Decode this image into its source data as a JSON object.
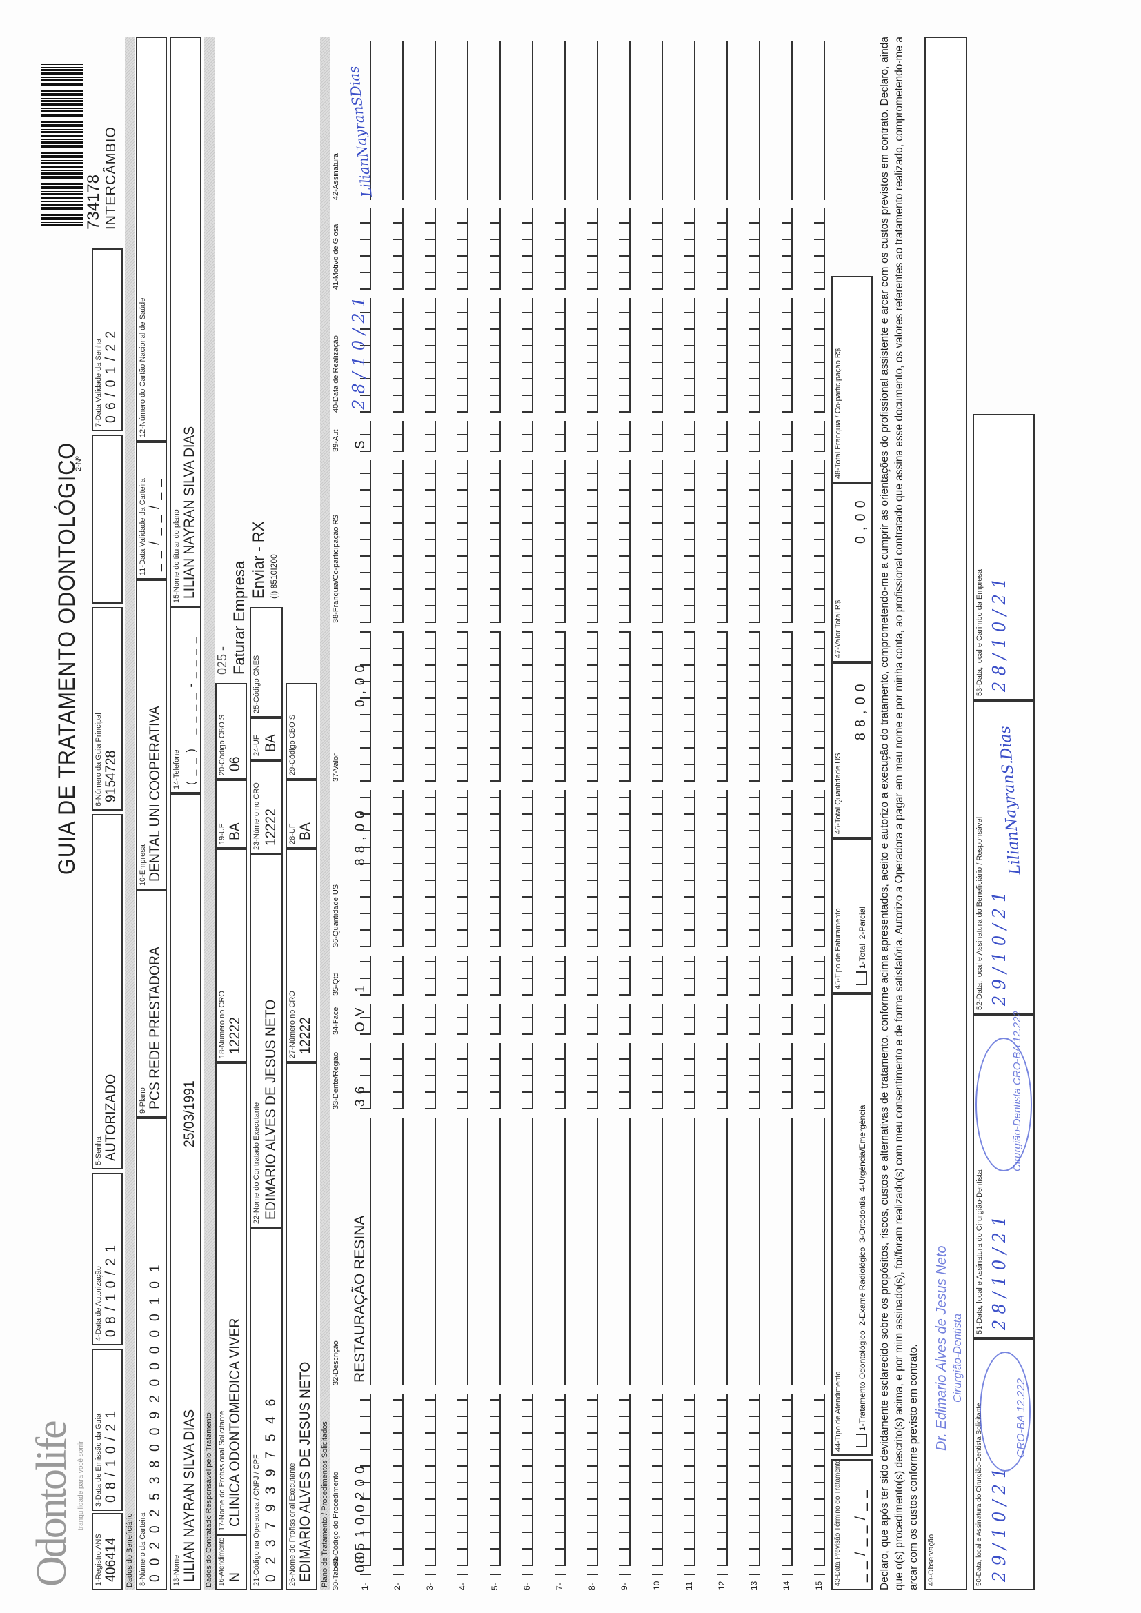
{
  "header": {
    "logo": "Odontolife",
    "tagline": "tranquilidade para você sorrir",
    "title": "GUIA DE TRATAMENTO ODONTOLÓGICO",
    "numero_label": "2-Nº",
    "numero": "734178",
    "tipo": "INTERCÂMBIO"
  },
  "fields": {
    "f1": {
      "label": "1-Registro ANS",
      "value": "406414"
    },
    "f3": {
      "label": "3-Data de Emissão da Guia",
      "value": "08/10/21"
    },
    "f4": {
      "label": "4-Data de Autorização",
      "value": "08/10/21"
    },
    "f5": {
      "label": "5-Senha",
      "value": "AUTORIZADO"
    },
    "f6": {
      "label": "6-Número da Guia Principal",
      "value": "9154728"
    },
    "f7": {
      "label": "7-Data Validade da Senha",
      "value": "06/01/22"
    },
    "f8": {
      "label": "8-Número da Carteira",
      "value": "00202538009200000101"
    },
    "f9": {
      "label": "9-Plano",
      "value": "PCS REDE PRESTADORA"
    },
    "f10": {
      "label": "10-Empresa",
      "value": "DENTAL UNI COOPERATIVA"
    },
    "f11": {
      "label": "11-Data Validade da Carteira",
      "value": "__/__/__"
    },
    "f12": {
      "label": "12-Número do Cartão Nacional de Saúde",
      "value": ""
    },
    "f13": {
      "label": "13-Nome",
      "value": "LILIAN NAYRAN SILVA DIAS",
      "birth": "25/03/1991"
    },
    "f14": {
      "label": "14-Telefone",
      "value": "(__) ____-____"
    },
    "f15": {
      "label": "15-Nome do titular do plano",
      "value": "LILIAN NAYRAN SILVA DIAS"
    },
    "f16": {
      "label": "16-Atendimento a RN",
      "value": "N"
    },
    "f17": {
      "label": "17-Nome do Profissional Solicitante",
      "value": "CLINICA ODONTOMEDICA VIVER"
    },
    "f18": {
      "label": "18-Número no CRO",
      "value": "12222"
    },
    "f19": {
      "label": "19-UF",
      "value": "BA"
    },
    "f20": {
      "label": "20-Código CBO S",
      "value": "06"
    },
    "f21": {
      "label": "21-Código na Operadora / CNPJ / CPF",
      "value": "02379397546"
    },
    "f22": {
      "label": "22-Nome do Contratado Executante",
      "value": "EDIMARIO ALVES DE JESUS NETO"
    },
    "f23": {
      "label": "23-Número no CRO",
      "value": "12222"
    },
    "f24": {
      "label": "24-UF",
      "value": "BA"
    },
    "f25": {
      "label": "25-Código CNES",
      "value": ""
    },
    "f26": {
      "label": "26-Nome do Profissional Executante",
      "value": "EDIMARIO ALVES DE JESUS NETO"
    },
    "f27": {
      "label": "27-Número no CRO",
      "value": "12222"
    },
    "f28": {
      "label": "28-UF",
      "value": "BA"
    },
    "f29": {
      "label": "29-Código CBO S",
      "value": ""
    }
  },
  "notes": {
    "faturamento_code": "025 -",
    "faturamento": "Faturar Empresa",
    "envio": "Enviar - RX",
    "envio_code": "(I) 8510I200"
  },
  "sections": {
    "beneficiario": "Dados do Beneficiário",
    "contratado": "Dados do Contratado Responsável pelo Tratamento",
    "plano": "Plano de Tratamento / Procedimentos Solicitados"
  },
  "table": {
    "columns": [
      "30-Tabela",
      "31-Código do Procedimento",
      "32-Descrição",
      "33-Dente/Região",
      "34-Face",
      "35-Qtd",
      "36-Quantidade US",
      "37-Valor",
      "38-Franquia/Co-participação R$",
      "39-Aut",
      "40-Data de Realização",
      "41-Motivo de Glosa",
      "42-Assinatura"
    ],
    "rows": [
      {
        "num": "1-",
        "tabela": "00",
        "codigo": "85100200",
        "descricao": "RESTAURAÇÃO RESINA",
        "dente": "36",
        "face": "OV",
        "qtd": "1",
        "qtd_us": "88,00",
        "valor": "0,00",
        "franquia": "",
        "aut": "S",
        "data": "28/10/21",
        "motivo": "",
        "assinatura": "LilianNayranSDias"
      },
      {
        "num": "2-"
      },
      {
        "num": "3-"
      },
      {
        "num": "4-"
      },
      {
        "num": "5-"
      },
      {
        "num": "6-"
      },
      {
        "num": "7-"
      },
      {
        "num": "8-"
      },
      {
        "num": "9-"
      },
      {
        "num": "10"
      },
      {
        "num": "11"
      },
      {
        "num": "12"
      },
      {
        "num": "13"
      },
      {
        "num": "14"
      },
      {
        "num": "15"
      }
    ]
  },
  "totals": {
    "f43": {
      "label": "43-Data Previsão Término do Tratamento",
      "value": "__/__/__"
    },
    "f44": {
      "label": "44-Tipo de Atendimento",
      "options": "1-Tratamento Odontológico  2-Exame Radiológico  3-Ortodontia  4-Urgência/Emergência"
    },
    "f45": {
      "label": "45-Tipo de Faturamento",
      "options": "1-Total  2-Parcial"
    },
    "f46": {
      "label": "46-Total Quantidade US",
      "value": "88,00"
    },
    "f47": {
      "label": "47-Valor Total R$",
      "value": "0,00"
    },
    "f48": {
      "label": "48-Total Franquia / Co-participação R$",
      "value": ""
    }
  },
  "declaration": "Declaro, que após ter sido devidamente esclarecido sobre os propósitos, riscos, custos e alternativas de tratamento, conforme acima apresentados, aceito e autorizo a execução do tratamento, comprometendo-me a cumprir as orientações do profissional assistente e arcar com os custos previstos em contrato. Declaro, ainda que o(s) procedimento(s) descrito(s) acima, e por mim assinado(s), foi/foram realizado(s) com meu consentimento e de forma satisfatória. Autorizo a Operadora a pagar em meu nome e por minha conta, ao profissional contratado que assina esse documento, os valores referentes ao tratamento realizado, comprometendo-me a arcar com os custos conforme previsto em contrato.",
  "observacao": {
    "label": "49-Observação",
    "stamp_name": "Dr. Edimario Alves de Jesus Neto",
    "stamp_title": "Cirurgião-Dentista"
  },
  "signatures": {
    "f50": {
      "label": "50-Data, local e Assinatura do Cirurgião-Dentista Solicitante",
      "value": "29/10/21",
      "stamp": "CRO-BA 12.222"
    },
    "f51": {
      "label": "51-Data, local e Assinatura do Cirurgião-Dentista",
      "value": "28/10/21"
    },
    "f52": {
      "label": "52-Data, local e Assinatura do Beneficiário / Responsável",
      "value": "29/10/21",
      "signature": "LilianNayranS.Dias",
      "stamp": "Cirurgião-Dentista CRO-BA 12.222"
    },
    "f53": {
      "label": "53-Data, local e Carimbo da Empresa",
      "value": "28/10/21"
    }
  },
  "colors": {
    "ink": "#222222",
    "handwriting": "#3b4fc8",
    "section_bg": "#d4d4d4"
  }
}
